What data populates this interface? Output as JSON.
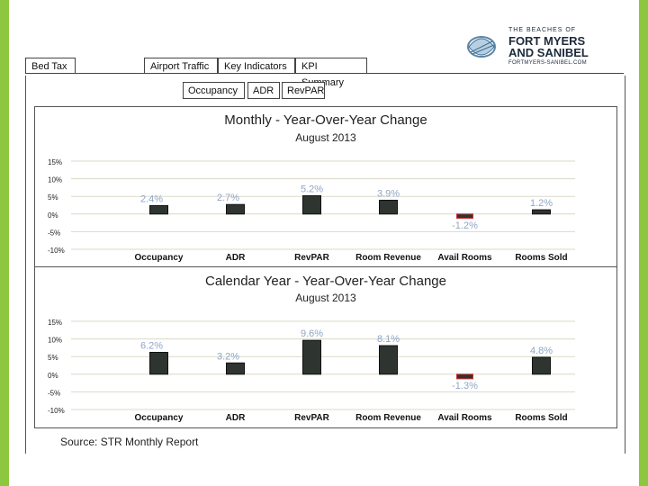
{
  "logo": {
    "line1": "THE BEACHES OF",
    "line2": "FORT MYERS",
    "line3": "AND SANIBEL",
    "line4": "FORTMYERS-SANIBEL.COM"
  },
  "tabs": [
    "Bed Tax",
    "Airport Traffic",
    "Key Indicators",
    "KPI Summary"
  ],
  "subtabs": [
    "Occupancy",
    "ADR",
    "RevPAR"
  ],
  "source": "Source: STR Monthly Report",
  "colors": {
    "bar": "#2e3430",
    "label": "#8fa6c8",
    "grid": "#d9d9c8",
    "neg_bar": "#c9302c"
  },
  "chart_data": [
    {
      "type": "bar",
      "title": "Monthly - Year-Over-Year Change",
      "subtitle": "August 2013",
      "categories": [
        "Occupancy",
        "ADR",
        "RevPAR",
        "Room Revenue",
        "Avail Rooms",
        "Rooms Sold"
      ],
      "values": [
        2.4,
        2.7,
        5.2,
        3.9,
        -1.2,
        1.2
      ],
      "data_labels": [
        "2.4%",
        "2.7%",
        "5.2%",
        "3.9%",
        "-1.2%",
        "1.2%"
      ],
      "yticks": [
        "15%",
        "10%",
        "5%",
        "0%",
        "-5%",
        "-10%"
      ],
      "ylim": [
        -10,
        15
      ]
    },
    {
      "type": "bar",
      "title": "Calendar Year - Year-Over-Year Change",
      "subtitle": "August 2013",
      "categories": [
        "Occupancy",
        "ADR",
        "RevPAR",
        "Room Revenue",
        "Avail Rooms",
        "Rooms Sold"
      ],
      "values": [
        6.2,
        3.2,
        9.6,
        8.1,
        -1.3,
        4.8
      ],
      "data_labels": [
        "6.2%",
        "3.2%",
        "9.6%",
        "8.1%",
        "-1.3%",
        "4.8%"
      ],
      "yticks": [
        "15%",
        "10%",
        "5%",
        "0%",
        "-5%",
        "-10%"
      ],
      "ylim": [
        -10,
        15
      ]
    }
  ]
}
